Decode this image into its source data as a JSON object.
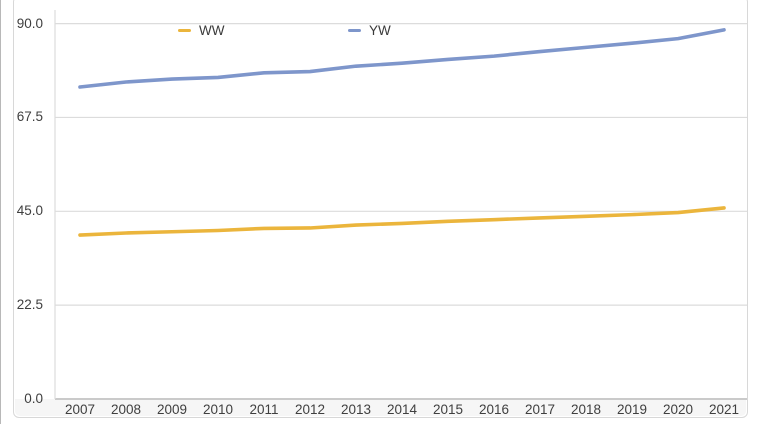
{
  "chart_data": {
    "type": "line",
    "title": "",
    "xlabel": "",
    "ylabel": "",
    "categories": [
      "2007",
      "2008",
      "2009",
      "2010",
      "2011",
      "2012",
      "2013",
      "2014",
      "2015",
      "2016",
      "2017",
      "2018",
      "2019",
      "2020",
      "2021"
    ],
    "series": [
      {
        "name": "WW",
        "color": "#EBB53C",
        "values": [
          39.3,
          39.8,
          40.1,
          40.4,
          40.9,
          41.0,
          41.7,
          42.1,
          42.6,
          43.0,
          43.4,
          43.8,
          44.2,
          44.7,
          45.8
        ]
      },
      {
        "name": "YW",
        "color": "#7E96CB",
        "values": [
          74.8,
          76.0,
          76.7,
          77.1,
          78.2,
          78.5,
          79.8,
          80.5,
          81.4,
          82.2,
          83.3,
          84.3,
          85.3,
          86.4,
          88.5
        ]
      }
    ],
    "ylim": [
      0,
      90
    ],
    "yticks": [
      0,
      22.5,
      45,
      67.5,
      90
    ],
    "ytick_labels": [
      "0.0",
      "22.5",
      "45.0",
      "67.5",
      "90.0"
    ],
    "grid": true,
    "legend_position": "top-inside"
  },
  "colors": {
    "gridline": "#dcdcdc",
    "axis_line": "#c3c3c3",
    "card_border": "#d8d8d8",
    "tick_text": "#3f3f3f"
  }
}
